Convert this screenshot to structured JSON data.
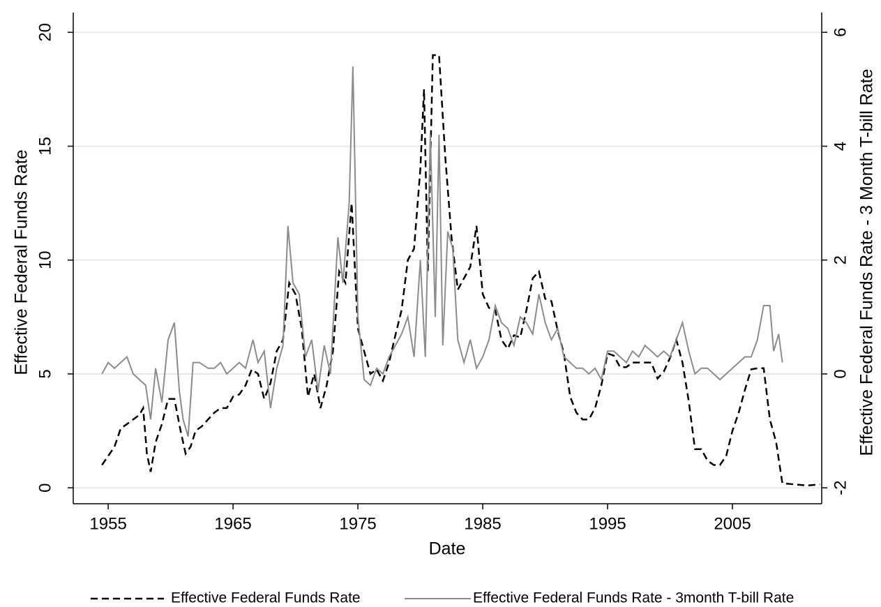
{
  "chart_data": {
    "type": "line",
    "xlabel": "Date",
    "ylabel": "Effective Federal Funds Rate",
    "y2label": "Effective Federal Funds Rate - 3 Month T-bill Rate",
    "xlim": [
      1952.2,
      2012.15
    ],
    "xticks": [
      1955,
      1965,
      1975,
      1985,
      1995,
      2005
    ],
    "ylim": [
      -0.7,
      20.5
    ],
    "yticks": [
      0,
      5,
      10,
      15,
      20
    ],
    "y2lim": [
      -2.28,
      6.2
    ],
    "y2ticks": [
      -2,
      0,
      2,
      4,
      6
    ],
    "grid": true,
    "legend": "bottom",
    "series": [
      {
        "name": "Effective Federal Funds Rate",
        "color": "#000000",
        "line_style": "dashed",
        "axis": "y",
        "x": [
          1954.5,
          1955,
          1955.5,
          1956,
          1956.5,
          1957,
          1957.5,
          1957.8,
          1958.1,
          1958.4,
          1958.8,
          1959.3,
          1959.8,
          1960.3,
          1960.8,
          1961.2,
          1961.6,
          1962,
          1962.5,
          1963,
          1963.5,
          1964,
          1964.5,
          1965,
          1965.5,
          1966,
          1966.5,
          1967,
          1967.5,
          1968,
          1968.5,
          1969,
          1969.5,
          1970,
          1970.5,
          1971,
          1971.5,
          1972,
          1972.5,
          1973,
          1973.5,
          1974,
          1974.5,
          1975,
          1975.5,
          1976,
          1976.5,
          1977,
          1977.5,
          1978,
          1978.5,
          1979,
          1979.5,
          1980,
          1980.3,
          1980.6,
          1981,
          1981.5,
          1982,
          1982.5,
          1983,
          1983.5,
          1984,
          1984.5,
          1985,
          1985.5,
          1986,
          1986.5,
          1987,
          1987.5,
          1988,
          1988.5,
          1989,
          1989.5,
          1990,
          1990.5,
          1991,
          1991.5,
          1992,
          1992.5,
          1993,
          1993.5,
          1994,
          1994.5,
          1995,
          1995.5,
          1996,
          1996.5,
          1997,
          1997.5,
          1998,
          1998.5,
          1999,
          1999.5,
          2000,
          2000.5,
          2001,
          2001.5,
          2002,
          2002.5,
          2003,
          2003.5,
          2004,
          2004.5,
          2005,
          2005.5,
          2006,
          2006.5,
          2007,
          2007.5,
          2008,
          2008.5,
          2009,
          2010,
          2011,
          2012
        ],
        "values": [
          1.0,
          1.4,
          1.8,
          2.6,
          2.8,
          3.0,
          3.2,
          3.5,
          1.5,
          0.7,
          2.0,
          2.8,
          3.9,
          3.9,
          2.5,
          1.5,
          1.8,
          2.5,
          2.7,
          3.0,
          3.3,
          3.5,
          3.5,
          4.0,
          4.1,
          4.5,
          5.2,
          5.0,
          3.9,
          4.6,
          6.0,
          6.5,
          9.0,
          8.5,
          7.0,
          4.0,
          5.0,
          3.5,
          4.5,
          6.0,
          9.5,
          9.0,
          12.5,
          7.0,
          6.0,
          5.0,
          5.2,
          4.7,
          5.5,
          6.7,
          7.8,
          10.0,
          10.5,
          14.0,
          17.5,
          9.5,
          19.0,
          19.0,
          14.5,
          11.0,
          8.7,
          9.2,
          9.7,
          11.5,
          8.5,
          7.9,
          7.8,
          6.5,
          6.1,
          6.7,
          6.6,
          7.8,
          9.2,
          9.5,
          8.3,
          8.2,
          6.9,
          5.9,
          4.0,
          3.3,
          3.0,
          3.0,
          3.5,
          4.5,
          5.9,
          5.8,
          5.3,
          5.3,
          5.5,
          5.5,
          5.5,
          5.5,
          4.8,
          5.1,
          5.7,
          6.5,
          5.5,
          3.8,
          1.7,
          1.7,
          1.2,
          1.0,
          1.0,
          1.4,
          2.5,
          3.3,
          4.3,
          5.2,
          5.25,
          5.25,
          3.0,
          2.0,
          0.2,
          0.15,
          0.1,
          0.15
        ]
      },
      {
        "name": "Effective Federal Funds Rate - 3month T-bill Rate",
        "color": "#8c8c8c",
        "line_style": "solid",
        "axis": "y2",
        "x": [
          1954.5,
          1955,
          1955.5,
          1956,
          1956.5,
          1957,
          1957.5,
          1958,
          1958.4,
          1958.8,
          1959.3,
          1959.8,
          1960.3,
          1960.7,
          1961,
          1961.4,
          1961.8,
          1962.3,
          1963,
          1963.5,
          1964,
          1964.5,
          1965,
          1965.5,
          1966,
          1966.6,
          1967,
          1967.5,
          1968,
          1968.5,
          1969,
          1969.4,
          1969.8,
          1970.3,
          1970.8,
          1971.3,
          1971.8,
          1972.3,
          1972.8,
          1973.4,
          1973.8,
          1974.3,
          1974.6,
          1975,
          1975.5,
          1976,
          1976.5,
          1977,
          1977.5,
          1978,
          1978.5,
          1979,
          1979.5,
          1980,
          1980.4,
          1980.8,
          1981.2,
          1981.5,
          1981.8,
          1982.2,
          1982.6,
          1983,
          1983.5,
          1984,
          1984.5,
          1985,
          1985.5,
          1986,
          1986.5,
          1987,
          1987.5,
          1988,
          1988.5,
          1989,
          1989.5,
          1990,
          1990.5,
          1991,
          1991.5,
          1992,
          1992.5,
          1993,
          1993.5,
          1994,
          1994.5,
          1995,
          1995.5,
          1996,
          1996.5,
          1997,
          1997.5,
          1998,
          1998.5,
          1999,
          1999.5,
          2000,
          2000.5,
          2001,
          2001.5,
          2002,
          2002.5,
          2003,
          2003.5,
          2004,
          2004.5,
          2005,
          2005.5,
          2006,
          2006.5,
          2007,
          2007.5,
          2008,
          2008.3,
          2008.7,
          2009
        ],
        "values": [
          0.0,
          0.2,
          0.1,
          0.2,
          0.3,
          0.0,
          -0.1,
          -0.2,
          -0.8,
          0.1,
          -0.5,
          0.6,
          0.9,
          -0.3,
          -0.8,
          -1.1,
          0.2,
          0.2,
          0.1,
          0.1,
          0.2,
          0.0,
          0.1,
          0.2,
          0.1,
          0.6,
          0.2,
          0.4,
          -0.6,
          0.1,
          0.5,
          2.6,
          1.6,
          1.4,
          0.3,
          0.6,
          -0.3,
          0.5,
          0.0,
          2.4,
          1.6,
          3.0,
          5.4,
          1.0,
          -0.1,
          -0.2,
          0.1,
          0.0,
          0.3,
          0.5,
          0.7,
          1.0,
          0.3,
          2.0,
          0.3,
          4.2,
          1.0,
          4.2,
          0.5,
          2.5,
          2.2,
          0.6,
          0.2,
          0.6,
          0.1,
          0.3,
          0.6,
          1.2,
          0.9,
          0.8,
          0.5,
          1.0,
          0.9,
          0.7,
          1.4,
          0.9,
          0.6,
          0.8,
          0.3,
          0.2,
          0.1,
          0.1,
          0.0,
          0.1,
          -0.1,
          0.4,
          0.4,
          0.3,
          0.2,
          0.4,
          0.3,
          0.5,
          0.4,
          0.3,
          0.4,
          0.3,
          0.6,
          0.9,
          0.4,
          0.0,
          0.1,
          0.1,
          0.0,
          -0.1,
          0.0,
          0.1,
          0.2,
          0.3,
          0.3,
          0.6,
          1.2,
          1.2,
          0.4,
          0.7,
          0.2
        ]
      }
    ]
  }
}
